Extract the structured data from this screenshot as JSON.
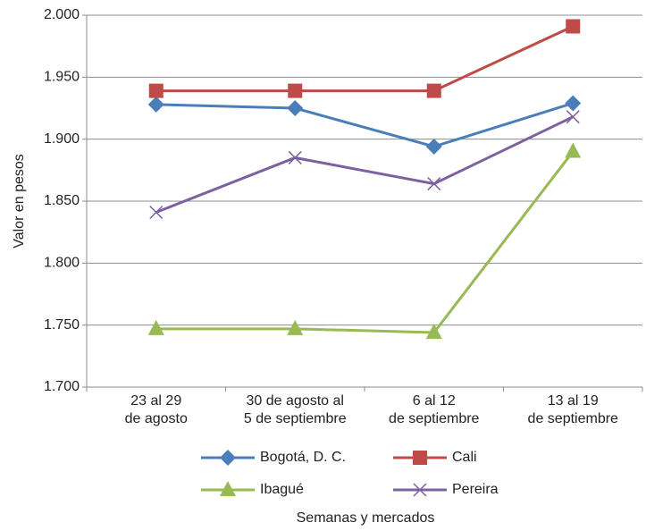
{
  "chart_data": {
    "type": "line",
    "x_label": "Semanas y mercados",
    "y_label": "Valor en pesos",
    "categories": [
      "23 al 29\nde agosto",
      "30 de agosto al\n5 de septiembre",
      "6 al 12\nde septiembre",
      "13 al 19\nde septiembre"
    ],
    "series": [
      {
        "name": "Bogotá, D. C.",
        "color": "#4a7ebb",
        "marker": "diamond",
        "values": [
          1928,
          1925,
          1894,
          1929
        ]
      },
      {
        "name": "Cali",
        "color": "#be4b48",
        "marker": "square",
        "values": [
          1939,
          1939,
          1939,
          1991
        ]
      },
      {
        "name": "Ibagué",
        "color": "#98b954",
        "marker": "triangle",
        "values": [
          1747,
          1747,
          1744,
          1890
        ]
      },
      {
        "name": "Pereira",
        "color": "#7d60a0",
        "marker": "x",
        "values": [
          1841,
          1885,
          1864,
          1918
        ]
      }
    ],
    "ylim": [
      1700,
      2000
    ],
    "yticks": [
      {
        "value": 1700,
        "label": "1.700"
      },
      {
        "value": 1750,
        "label": "1.750"
      },
      {
        "value": 1800,
        "label": "1.800"
      },
      {
        "value": 1850,
        "label": "1.850"
      },
      {
        "value": 1900,
        "label": "1.900"
      },
      {
        "value": 1950,
        "label": "1.950"
      },
      {
        "value": 2000,
        "label": "2.000"
      }
    ],
    "grid": true,
    "legend": "bottom"
  }
}
